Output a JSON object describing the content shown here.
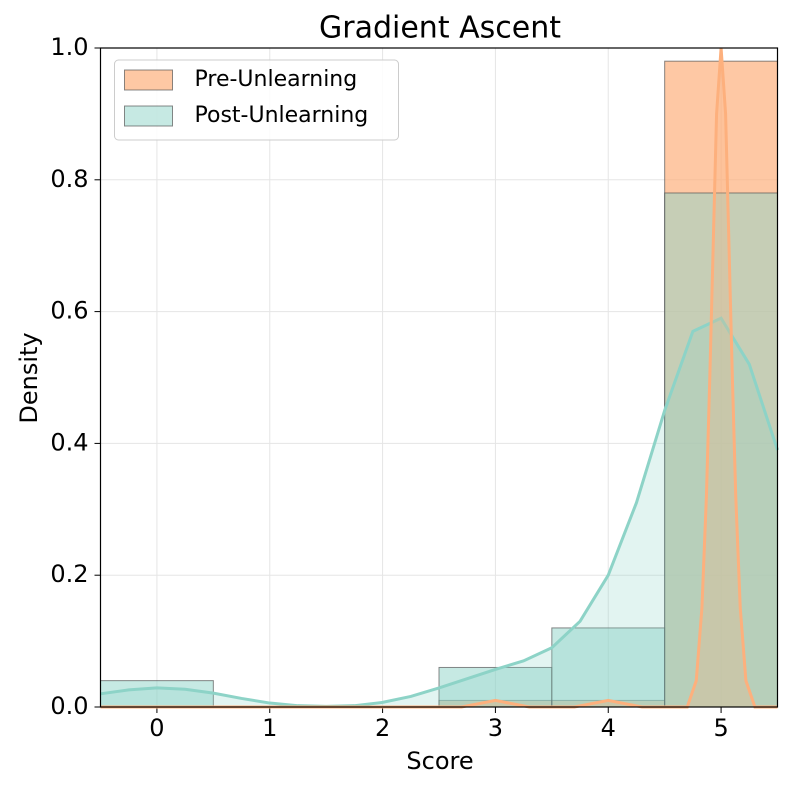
{
  "chart_data": {
    "type": "histogram",
    "title": "Gradient Ascent",
    "x_label": "Score",
    "y_label": "Density",
    "bins": [
      -0.5,
      0.5,
      1.5,
      2.5,
      3.5,
      4.5,
      5.5
    ],
    "series": [
      {
        "name": "Pre-Unlearning",
        "color": "#fdb07d",
        "values": [
          0,
          0,
          0,
          0.01,
          0.01,
          0.98
        ],
        "kde": {
          "x": [
            -0.5,
            2.7,
            2.85,
            3,
            3.15,
            3.3,
            3.7,
            3.85,
            4,
            4.15,
            4.3,
            4.7,
            4.78,
            4.83,
            4.87,
            4.9,
            4.93,
            4.96,
            5,
            5.04,
            5.07,
            5.1,
            5.13,
            5.17,
            5.22,
            5.3,
            5.5
          ],
          "y": [
            0,
            0,
            0.005,
            0.01,
            0.005,
            0,
            0,
            0.005,
            0.01,
            0.005,
            0,
            0,
            0.04,
            0.15,
            0.32,
            0.5,
            0.7,
            0.9,
            1.0,
            0.9,
            0.7,
            0.5,
            0.32,
            0.15,
            0.04,
            0,
            0
          ]
        }
      },
      {
        "name": "Post-Unlearning",
        "color": "#8dd3c7",
        "values": [
          0.04,
          0,
          0,
          0.06,
          0.12,
          0.78
        ],
        "kde": {
          "x": [
            -0.5,
            -0.25,
            0,
            0.25,
            0.5,
            0.75,
            1,
            1.25,
            1.5,
            1.75,
            2,
            2.25,
            2.5,
            2.75,
            3,
            3.25,
            3.5,
            3.75,
            4,
            4.25,
            4.5,
            4.75,
            5,
            5.25,
            5.5
          ],
          "y": [
            0.02,
            0.026,
            0.029,
            0.027,
            0.021,
            0.013,
            0.006,
            0.002,
            0.001,
            0.002,
            0.007,
            0.016,
            0.029,
            0.043,
            0.057,
            0.07,
            0.09,
            0.13,
            0.2,
            0.31,
            0.45,
            0.57,
            0.59,
            0.52,
            0.39
          ]
        }
      }
    ],
    "xlim": [
      -0.5,
      5.5
    ],
    "xticks": [
      0,
      1,
      2,
      3,
      4,
      5
    ],
    "ylim": [
      0,
      1
    ],
    "yticks": [
      {
        "value": 0,
        "label": "0.0"
      },
      0.2,
      0.4,
      0.6,
      0.8,
      {
        "value": 1,
        "label": "1.0"
      }
    ],
    "grid": true,
    "legend": "upper-left"
  }
}
